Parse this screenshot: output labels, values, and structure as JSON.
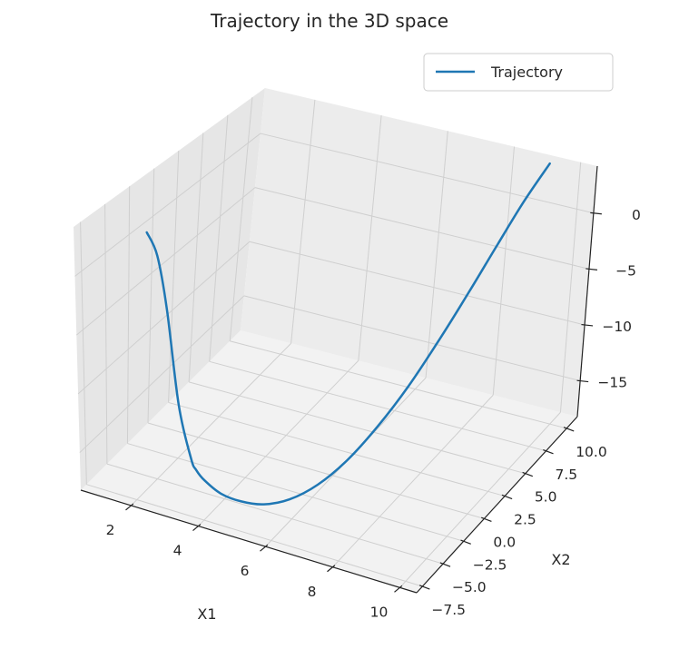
{
  "chart_data": {
    "type": "line",
    "title": "Trajectory in the 3D space",
    "xlabel": "X1",
    "ylabel": "X2",
    "zlabel": "",
    "legend": {
      "placement": "top-right",
      "entries": [
        "Trajectory"
      ]
    },
    "grid": true,
    "xlim": [
      0.5,
      10.5
    ],
    "ylim": [
      -8.2,
      11.3
    ],
    "zlim": [
      -18.2,
      4.2
    ],
    "x_ticks": [
      "2",
      "4",
      "6",
      "8",
      "10"
    ],
    "y_ticks": [
      "−7.5",
      "−5.0",
      "−2.5",
      "0.0",
      "2.5",
      "5.0",
      "7.5",
      "10.0"
    ],
    "z_ticks": [
      "−15",
      "−10",
      "−5",
      "0"
    ],
    "x_tick_values": [
      2,
      4,
      6,
      8,
      10
    ],
    "y_tick_values": [
      -7.5,
      -5.0,
      -2.5,
      0.0,
      2.5,
      5.0,
      7.5,
      10.0
    ],
    "z_tick_values": [
      -15,
      -10,
      -5,
      0
    ],
    "series": [
      {
        "name": "Trajectory",
        "color": "#1f77b4",
        "x": [
          1,
          1.5,
          2,
          2.5,
          3,
          3.2,
          3.5,
          4,
          4.5,
          5,
          5.5,
          6,
          6.5,
          7,
          7.5,
          8,
          8.5,
          9,
          9.5,
          10
        ],
        "y": [
          -1.5,
          -2.3,
          -3.3,
          -4.2,
          -4.9,
          -5.1,
          -5.3,
          -5.4,
          -5.0,
          -4.3,
          -3.2,
          -1.8,
          -0.2,
          1.6,
          3.4,
          5.2,
          6.9,
          8.5,
          9.8,
          11.0
        ],
        "z": [
          -0.5,
          -1.5,
          -5.0,
          -12.0,
          -15.6,
          -16.3,
          -16.8,
          -17.4,
          -17.9,
          -18.2,
          -18.1,
          -17.4,
          -16.0,
          -13.9,
          -11.3,
          -8.2,
          -4.9,
          -1.5,
          1.7,
          4.5
        ]
      }
    ]
  }
}
